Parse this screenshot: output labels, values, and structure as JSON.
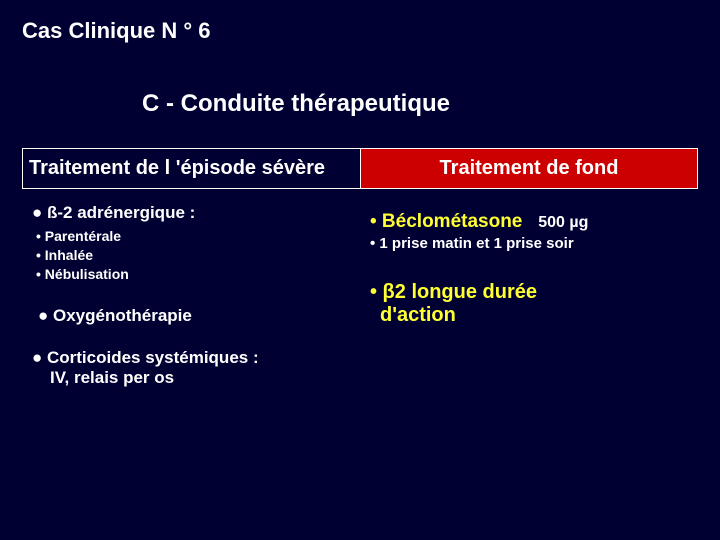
{
  "caseTitle": "Cas Clinique N ° 6",
  "sectionTitle": "C - Conduite thérapeutique",
  "left": {
    "header": "Traitement de l 'épisode  sévère",
    "b2_title": "● ß-2 adrénergique :",
    "b2_sub1": "• Parentérale",
    "b2_sub2": "• Inhalée",
    "b2_sub3": "• Nébulisation",
    "oxy": "● Oxygénothérapie",
    "cortico": "● Corticoides systémiques :",
    "cortico_sub": "IV, relais per os"
  },
  "right": {
    "header": "Traitement de fond",
    "beclo": "• Béclométasone",
    "beclo_dose": "500 µg",
    "beclo_sub": "• 1 prise matin et 1 prise soir",
    "beta2a": "• β2 longue durée",
    "beta2b": "d'action"
  },
  "colors": {
    "bg": "#000033",
    "headerRed": "#cc0000",
    "yellow": "#ffff33",
    "white": "#ffffff"
  }
}
